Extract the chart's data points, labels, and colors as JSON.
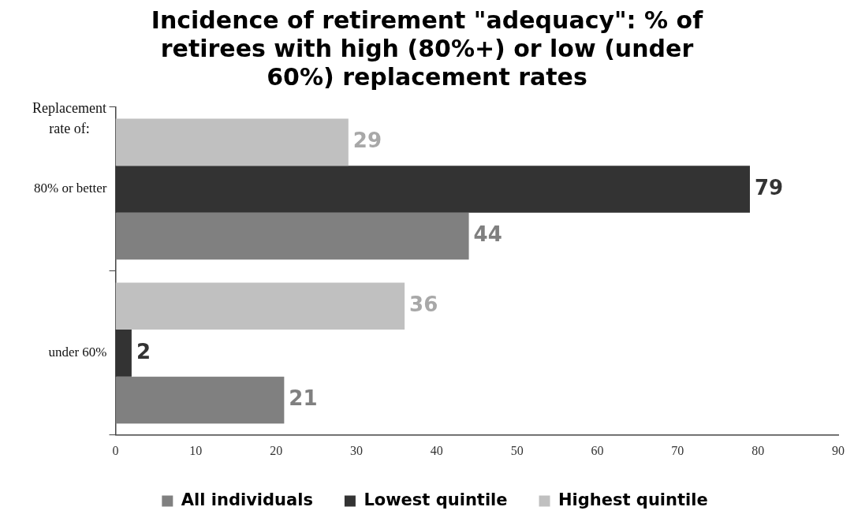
{
  "chart_data": {
    "type": "bar",
    "orientation": "horizontal",
    "title": "Incidence of retirement \"adequacy\": % of retirees with high (80%+) or low (under 60%) replacement rates",
    "ylabel": "Replacement rate of:",
    "categories": [
      "80% or better",
      "under 60%"
    ],
    "series": [
      {
        "name": "Highest quintile",
        "color": "#c0c0c0",
        "values": [
          29,
          36
        ]
      },
      {
        "name": "Lowest quintile",
        "color": "#333333",
        "values": [
          79,
          2
        ]
      },
      {
        "name": "All individuals",
        "color": "#808080",
        "values": [
          44,
          21
        ]
      }
    ],
    "xlim": [
      0,
      90
    ],
    "xticks": [
      0,
      10,
      20,
      30,
      40,
      50,
      60,
      70,
      80,
      90
    ],
    "grid": false,
    "legend": "bottom",
    "data_labels": true
  }
}
